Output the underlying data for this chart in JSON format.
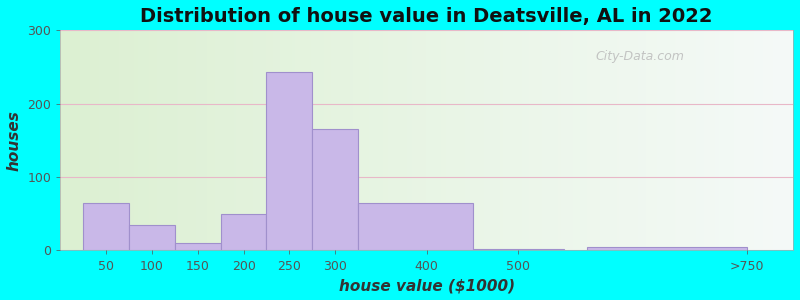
{
  "title": "Distribution of house value in Deatsville, AL in 2022",
  "xlabel": "house value ($1000)",
  "ylabel": "houses",
  "bar_labels": [
    "50",
    "100",
    "150",
    "200",
    "250",
    "300",
    "400",
    "500",
    ">750"
  ],
  "bar_heights": [
    65,
    35,
    10,
    50,
    243,
    165,
    65,
    2,
    5
  ],
  "bar_color": "#c9b8e8",
  "bar_edgecolor": "#a090cc",
  "ylim": [
    0,
    300
  ],
  "yticks": [
    0,
    100,
    200,
    300
  ],
  "background_outer": "#00FFFF",
  "title_fontsize": 14,
  "axis_label_fontsize": 11,
  "tick_fontsize": 9,
  "watermark_text": "City-Data.com",
  "watermark_color": "#bbbbbb",
  "tick_positions": [
    50,
    100,
    150,
    200,
    250,
    300,
    400,
    500,
    750
  ],
  "bar_lefts": [
    25,
    75,
    125,
    175,
    225,
    275,
    325,
    450,
    575
  ],
  "bar_widths": [
    50,
    50,
    50,
    50,
    50,
    50,
    125,
    100,
    175
  ]
}
